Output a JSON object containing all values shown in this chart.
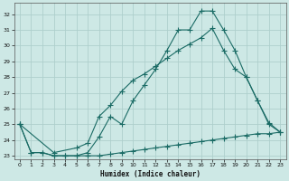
{
  "xlabel": "Humidex (Indice chaleur)",
  "xlim": [
    -0.5,
    23.5
  ],
  "ylim": [
    22.8,
    32.7
  ],
  "yticks": [
    23,
    24,
    25,
    26,
    27,
    28,
    29,
    30,
    31,
    32
  ],
  "xticks": [
    0,
    1,
    2,
    3,
    4,
    5,
    6,
    7,
    8,
    9,
    10,
    11,
    12,
    13,
    14,
    15,
    16,
    17,
    18,
    19,
    20,
    21,
    22,
    23
  ],
  "bg_color": "#cde8e5",
  "grid_color": "#aecfcc",
  "line_color": "#1a6b65",
  "line1_x": [
    0,
    1,
    2,
    3,
    4,
    5,
    6,
    7,
    8,
    9,
    10,
    11,
    12,
    13,
    14,
    15,
    16,
    17,
    18,
    19,
    20,
    21,
    22,
    23
  ],
  "line1_y": [
    25.0,
    23.2,
    23.2,
    23.0,
    23.0,
    23.0,
    23.2,
    24.2,
    25.5,
    25.0,
    26.5,
    27.5,
    28.5,
    29.7,
    31.0,
    31.0,
    32.2,
    32.2,
    31.0,
    29.7,
    28.0,
    26.5,
    25.0,
    24.5
  ],
  "line2_x": [
    0,
    3,
    5,
    6,
    7,
    8,
    9,
    10,
    11,
    12,
    13,
    14,
    15,
    16,
    17,
    18,
    19,
    20,
    21,
    22,
    23
  ],
  "line2_y": [
    25.0,
    23.2,
    23.5,
    23.8,
    25.5,
    26.2,
    27.1,
    27.8,
    28.2,
    28.7,
    29.2,
    29.7,
    30.1,
    30.5,
    31.1,
    29.7,
    28.5,
    28.0,
    26.5,
    25.1,
    24.5
  ],
  "line3_x": [
    0,
    1,
    2,
    3,
    4,
    5,
    6,
    7,
    8,
    9,
    10,
    11,
    12,
    13,
    14,
    15,
    16,
    17,
    18,
    19,
    20,
    21,
    22,
    23
  ],
  "line3_y": [
    25.0,
    23.2,
    23.2,
    23.0,
    23.0,
    23.0,
    23.0,
    23.0,
    23.1,
    23.2,
    23.3,
    23.4,
    23.5,
    23.6,
    23.7,
    23.8,
    23.9,
    24.0,
    24.1,
    24.2,
    24.3,
    24.4,
    24.4,
    24.5
  ]
}
